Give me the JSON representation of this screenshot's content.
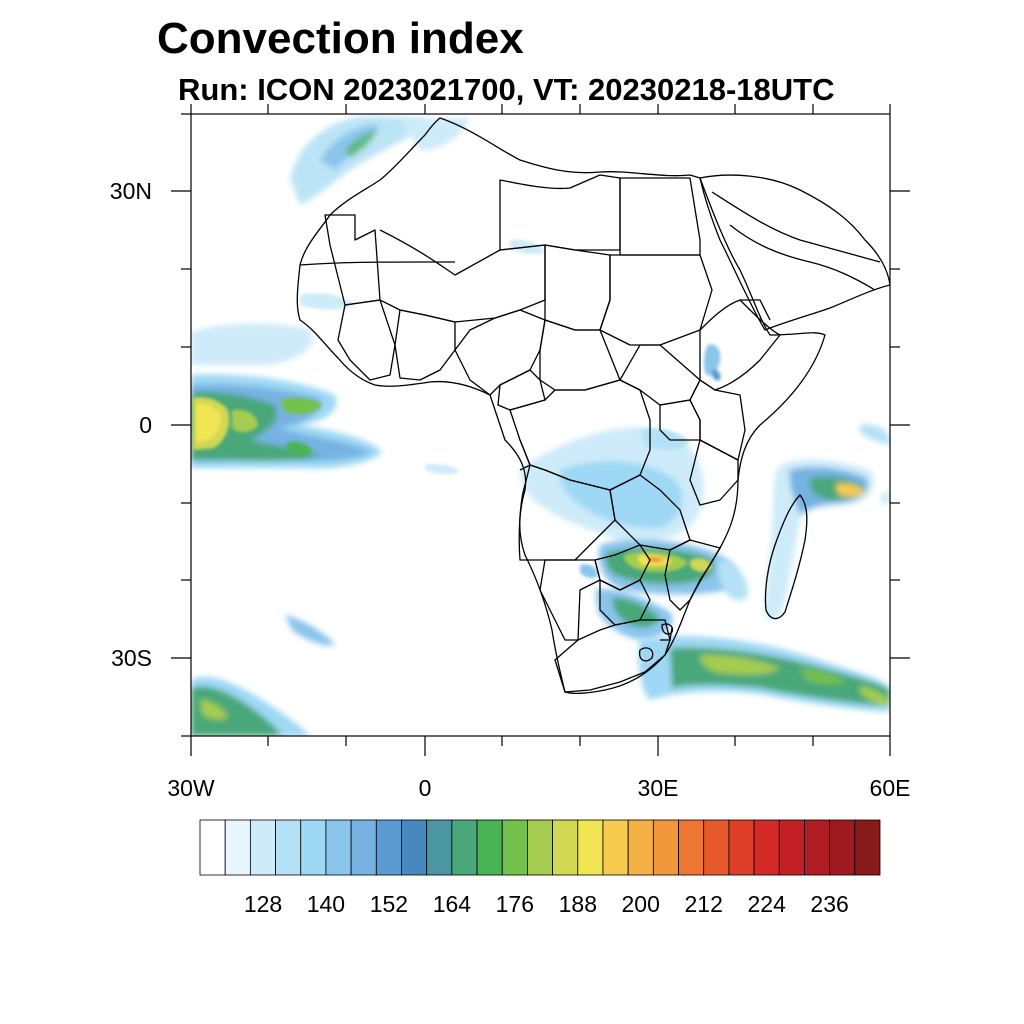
{
  "header": {
    "title": "Convection index",
    "subtitle": "Run: ICON 2023021700,  VT: 20230218-18UTC"
  },
  "axes": {
    "y_tick_labels": [
      "30N",
      "0",
      "30S"
    ],
    "x_tick_labels": [
      "30W",
      "0",
      "30E",
      "60E"
    ]
  },
  "colorbar": {
    "labels": [
      "128",
      "140",
      "152",
      "164",
      "176",
      "188",
      "200",
      "212",
      "224",
      "236"
    ],
    "colors": [
      "#ffffff",
      "#e8f6fd",
      "#cdebf9",
      "#b5e1f6",
      "#9ed8f4",
      "#8ac5ec",
      "#76b3e3",
      "#5b9bd2",
      "#4888c0",
      "#4a97a2",
      "#4aa77a",
      "#48b454",
      "#74c14e",
      "#a6cc4f",
      "#d1d852",
      "#f2e554",
      "#f6cb4f",
      "#f4b146",
      "#f2963c",
      "#ec7632",
      "#e65a2c",
      "#df3e29",
      "#d32a28",
      "#c21f26",
      "#b01c23",
      "#9d1a21",
      "#881a1c"
    ]
  },
  "map": {
    "region": "Africa",
    "lon_range": [
      -30,
      60
    ],
    "lat_range": [
      -40,
      40
    ],
    "field": "Convection index"
  }
}
